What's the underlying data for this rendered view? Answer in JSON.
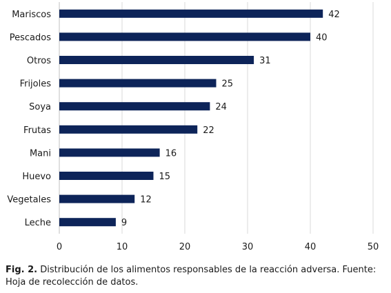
{
  "chart_data": {
    "type": "bar",
    "orientation": "horizontal",
    "categories": [
      "Mariscos",
      "Pescados",
      "Otros",
      "Frijoles",
      "Soya",
      "Frutas",
      "Mani",
      "Huevo",
      "Vegetales",
      "Leche"
    ],
    "values": [
      42,
      40,
      31,
      25,
      24,
      22,
      16,
      15,
      12,
      9
    ],
    "xlim": [
      0,
      50
    ],
    "xticks": [
      0,
      10,
      20,
      30,
      40,
      50
    ],
    "grid": "vertical",
    "bar_color": "#0d2459",
    "data_labels": true
  },
  "caption": {
    "label": "Fig. 2.",
    "text": " Distribución de los alimentos responsables de la reacción adversa. Fuente: Hoja de recolección de datos."
  }
}
